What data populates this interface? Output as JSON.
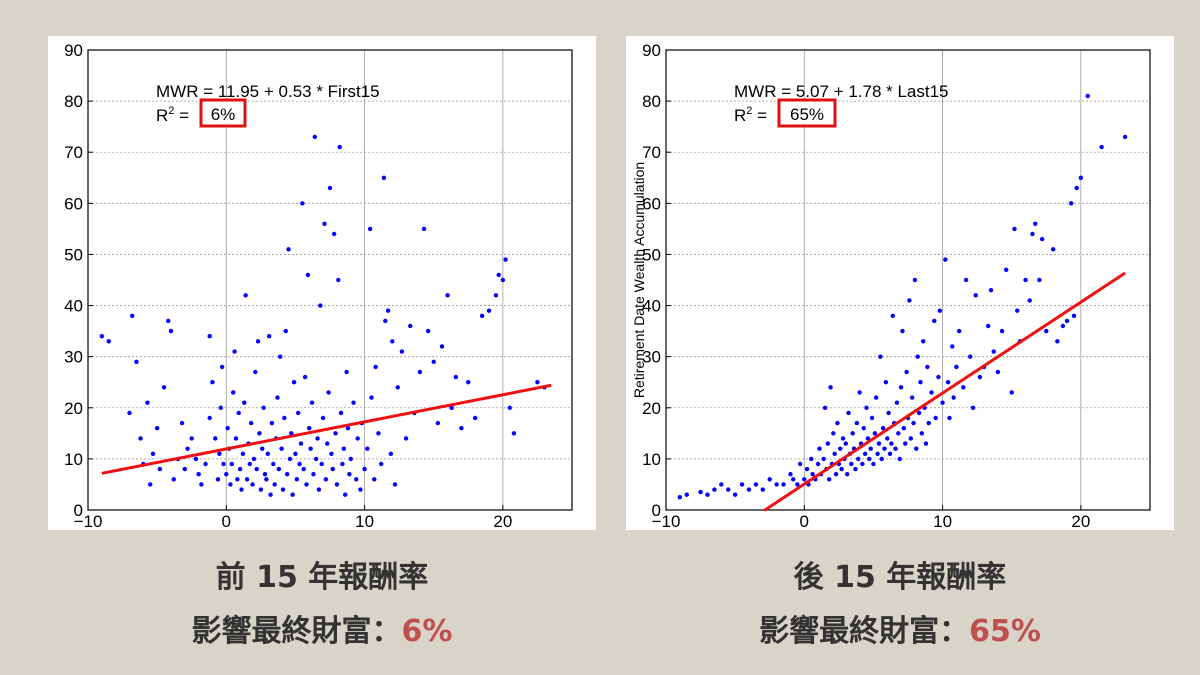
{
  "panels": [
    {
      "id": "left",
      "equation": "MWR = 11.95 + 0.53 * First15",
      "r2_prefix": "R",
      "r2_sup": "2",
      "r2_eq": " = ",
      "r2_value": "6%",
      "caption_line1": "前 15 年報酬率",
      "caption_line2_prefix": "影響最終財富：",
      "caption_line2_value": "6%"
    },
    {
      "id": "right",
      "equation": "MWR = 5.07 + 1.78 * Last15",
      "r2_prefix": "R",
      "r2_sup": "2",
      "r2_eq": " = ",
      "r2_value": "65%",
      "caption_line1": "後 15 年報酬率",
      "caption_line2_prefix": "影響最終財富：",
      "caption_line2_value": "65%"
    }
  ],
  "colors": {
    "background": "#d9d4ca",
    "points": "#0000ff",
    "fit_line": "#ee1111",
    "highlight_box": "#dd1111",
    "accent_text": "#c0504d"
  },
  "chart_data": [
    {
      "type": "scatter",
      "xlabel": "",
      "ylabel": "",
      "xlim": [
        -10,
        25
      ],
      "ylim": [
        0,
        90
      ],
      "xticks": [
        -10,
        0,
        10,
        20
      ],
      "yticks": [
        0,
        10,
        20,
        30,
        40,
        50,
        60,
        70,
        80,
        90
      ],
      "grid": true,
      "fit": {
        "intercept": 11.95,
        "slope": 0.53,
        "x_range": [
          -9,
          23.5
        ]
      },
      "points": [
        [
          -9,
          34
        ],
        [
          -8.5,
          33
        ],
        [
          -7,
          19
        ],
        [
          -6.8,
          38
        ],
        [
          -6.5,
          29
        ],
        [
          -6.2,
          14
        ],
        [
          -6,
          9
        ],
        [
          -5.7,
          21
        ],
        [
          -5.5,
          5
        ],
        [
          -5.3,
          11
        ],
        [
          -5,
          16
        ],
        [
          -4.8,
          8
        ],
        [
          -4.5,
          24
        ],
        [
          -4.2,
          37
        ],
        [
          -4,
          35
        ],
        [
          -3.8,
          6
        ],
        [
          -3.5,
          10
        ],
        [
          -3.2,
          17
        ],
        [
          -3,
          8
        ],
        [
          -2.8,
          12
        ],
        [
          -2.5,
          14
        ],
        [
          -2.2,
          10
        ],
        [
          -2,
          7
        ],
        [
          -1.8,
          5
        ],
        [
          -1.5,
          9
        ],
        [
          -1.2,
          34
        ],
        [
          -1.2,
          18
        ],
        [
          -1,
          25
        ],
        [
          -0.8,
          14
        ],
        [
          -0.6,
          6
        ],
        [
          -0.5,
          11
        ],
        [
          -0.4,
          20
        ],
        [
          -0.3,
          28
        ],
        [
          -0.2,
          9
        ],
        [
          0,
          7
        ],
        [
          0.1,
          16
        ],
        [
          0.2,
          12
        ],
        [
          0.3,
          5
        ],
        [
          0.4,
          9
        ],
        [
          0.5,
          23
        ],
        [
          0.6,
          31
        ],
        [
          0.7,
          14
        ],
        [
          0.8,
          6
        ],
        [
          0.9,
          19
        ],
        [
          1,
          8
        ],
        [
          1.1,
          4
        ],
        [
          1.2,
          11
        ],
        [
          1.3,
          21
        ],
        [
          1.4,
          42
        ],
        [
          1.5,
          6
        ],
        [
          1.6,
          13
        ],
        [
          1.7,
          9
        ],
        [
          1.8,
          17
        ],
        [
          1.9,
          5
        ],
        [
          2,
          10
        ],
        [
          2.1,
          27
        ],
        [
          2.2,
          8
        ],
        [
          2.3,
          33
        ],
        [
          2.4,
          15
        ],
        [
          2.5,
          4
        ],
        [
          2.6,
          12
        ],
        [
          2.7,
          20
        ],
        [
          2.8,
          7
        ],
        [
          2.9,
          6
        ],
        [
          3,
          11
        ],
        [
          3.1,
          34
        ],
        [
          3.2,
          3
        ],
        [
          3.3,
          17
        ],
        [
          3.4,
          9
        ],
        [
          3.5,
          5
        ],
        [
          3.6,
          14
        ],
        [
          3.7,
          22
        ],
        [
          3.8,
          8
        ],
        [
          3.9,
          30
        ],
        [
          4,
          12
        ],
        [
          4.1,
          4
        ],
        [
          4.2,
          18
        ],
        [
          4.3,
          35
        ],
        [
          4.4,
          7
        ],
        [
          4.5,
          51
        ],
        [
          4.6,
          10
        ],
        [
          4.7,
          15
        ],
        [
          4.8,
          3
        ],
        [
          4.9,
          25
        ],
        [
          5,
          11
        ],
        [
          5.1,
          6
        ],
        [
          5.2,
          19
        ],
        [
          5.3,
          9
        ],
        [
          5.4,
          13
        ],
        [
          5.5,
          60
        ],
        [
          5.6,
          8
        ],
        [
          5.7,
          26
        ],
        [
          5.8,
          5
        ],
        [
          5.9,
          46
        ],
        [
          6,
          16
        ],
        [
          6.1,
          12
        ],
        [
          6.2,
          21
        ],
        [
          6.3,
          7
        ],
        [
          6.4,
          73
        ],
        [
          6.5,
          10
        ],
        [
          6.6,
          14
        ],
        [
          6.7,
          4
        ],
        [
          6.8,
          40
        ],
        [
          6.9,
          9
        ],
        [
          7,
          18
        ],
        [
          7.1,
          56
        ],
        [
          7.2,
          6
        ],
        [
          7.3,
          13
        ],
        [
          7.4,
          23
        ],
        [
          7.5,
          63
        ],
        [
          7.6,
          11
        ],
        [
          7.7,
          8
        ],
        [
          7.8,
          54
        ],
        [
          7.9,
          15
        ],
        [
          8,
          5
        ],
        [
          8.1,
          45
        ],
        [
          8.2,
          71
        ],
        [
          8.3,
          19
        ],
        [
          8.4,
          9
        ],
        [
          8.5,
          12
        ],
        [
          8.6,
          3
        ],
        [
          8.7,
          27
        ],
        [
          8.8,
          16
        ],
        [
          8.9,
          7
        ],
        [
          9,
          10
        ],
        [
          9.2,
          21
        ],
        [
          9.4,
          6
        ],
        [
          9.5,
          14
        ],
        [
          9.7,
          4
        ],
        [
          9.8,
          17
        ],
        [
          10,
          8
        ],
        [
          10.2,
          12
        ],
        [
          10.4,
          55
        ],
        [
          10.5,
          22
        ],
        [
          10.7,
          6
        ],
        [
          10.8,
          28
        ],
        [
          11,
          15
        ],
        [
          11.2,
          9
        ],
        [
          11.4,
          65
        ],
        [
          11.5,
          37
        ],
        [
          11.7,
          39
        ],
        [
          11.9,
          11
        ],
        [
          12,
          33
        ],
        [
          12.2,
          5
        ],
        [
          12.4,
          24
        ],
        [
          12.7,
          31
        ],
        [
          13,
          14
        ],
        [
          13.3,
          36
        ],
        [
          13.6,
          19
        ],
        [
          14,
          27
        ],
        [
          14.3,
          55
        ],
        [
          14.6,
          35
        ],
        [
          15,
          29
        ],
        [
          15.3,
          17
        ],
        [
          15.6,
          32
        ],
        [
          16,
          42
        ],
        [
          16.3,
          20
        ],
        [
          16.6,
          26
        ],
        [
          17,
          16
        ],
        [
          17.5,
          25
        ],
        [
          18,
          18
        ],
        [
          18.5,
          38
        ],
        [
          19,
          39
        ],
        [
          19.5,
          42
        ],
        [
          19.7,
          46
        ],
        [
          20,
          45
        ],
        [
          20.2,
          49
        ],
        [
          20.5,
          20
        ],
        [
          20.8,
          15
        ],
        [
          22.5,
          25
        ],
        [
          23,
          24
        ]
      ]
    },
    {
      "type": "scatter",
      "xlabel": "",
      "ylabel": "Retirement Date Wealth Accumulation",
      "xlim": [
        -10,
        25
      ],
      "ylim": [
        0,
        90
      ],
      "xticks": [
        -10,
        0,
        10,
        20
      ],
      "yticks": [
        0,
        10,
        20,
        30,
        40,
        50,
        60,
        70,
        80,
        90
      ],
      "grid": true,
      "fit": {
        "intercept": 5.07,
        "slope": 1.78,
        "x_range": [
          -2.9,
          23.2
        ]
      },
      "points": [
        [
          -9,
          2.5
        ],
        [
          -8.5,
          3
        ],
        [
          -7.5,
          3.5
        ],
        [
          -7,
          3
        ],
        [
          -6.5,
          4
        ],
        [
          -6,
          5
        ],
        [
          -5.5,
          4
        ],
        [
          -5,
          3
        ],
        [
          -4.5,
          5
        ],
        [
          -4,
          4
        ],
        [
          -3.5,
          5
        ],
        [
          -3,
          4
        ],
        [
          -2.5,
          6
        ],
        [
          -2,
          5
        ],
        [
          -1.5,
          5
        ],
        [
          -1,
          7
        ],
        [
          -0.8,
          6
        ],
        [
          -0.5,
          5
        ],
        [
          -0.3,
          9
        ],
        [
          0,
          6
        ],
        [
          0.2,
          8
        ],
        [
          0.3,
          5
        ],
        [
          0.5,
          10
        ],
        [
          0.6,
          7
        ],
        [
          0.8,
          6
        ],
        [
          1,
          9
        ],
        [
          1.1,
          12
        ],
        [
          1.2,
          7
        ],
        [
          1.4,
          10
        ],
        [
          1.5,
          20
        ],
        [
          1.6,
          8
        ],
        [
          1.7,
          13
        ],
        [
          1.8,
          6
        ],
        [
          1.9,
          24
        ],
        [
          2,
          9
        ],
        [
          2.1,
          15
        ],
        [
          2.2,
          11
        ],
        [
          2.3,
          7
        ],
        [
          2.4,
          17
        ],
        [
          2.5,
          9
        ],
        [
          2.6,
          12
        ],
        [
          2.7,
          8
        ],
        [
          2.8,
          14
        ],
        [
          2.9,
          10
        ],
        [
          3,
          13
        ],
        [
          3.1,
          7
        ],
        [
          3.2,
          19
        ],
        [
          3.3,
          11
        ],
        [
          3.4,
          9
        ],
        [
          3.5,
          15
        ],
        [
          3.6,
          12
        ],
        [
          3.7,
          8
        ],
        [
          3.8,
          17
        ],
        [
          3.9,
          10
        ],
        [
          4,
          23
        ],
        [
          4.1,
          13
        ],
        [
          4.2,
          9
        ],
        [
          4.3,
          16
        ],
        [
          4.4,
          11
        ],
        [
          4.5,
          20
        ],
        [
          4.6,
          14
        ],
        [
          4.7,
          10
        ],
        [
          4.8,
          12
        ],
        [
          4.9,
          18
        ],
        [
          5,
          9
        ],
        [
          5.1,
          15
        ],
        [
          5.2,
          22
        ],
        [
          5.3,
          11
        ],
        [
          5.4,
          13
        ],
        [
          5.5,
          30
        ],
        [
          5.6,
          10
        ],
        [
          5.7,
          16
        ],
        [
          5.8,
          12
        ],
        [
          5.9,
          25
        ],
        [
          6,
          14
        ],
        [
          6.1,
          19
        ],
        [
          6.2,
          11
        ],
        [
          6.3,
          13
        ],
        [
          6.4,
          38
        ],
        [
          6.5,
          17
        ],
        [
          6.6,
          12
        ],
        [
          6.7,
          21
        ],
        [
          6.8,
          15
        ],
        [
          6.9,
          10
        ],
        [
          7,
          24
        ],
        [
          7.1,
          35
        ],
        [
          7.2,
          16
        ],
        [
          7.3,
          13
        ],
        [
          7.4,
          27
        ],
        [
          7.5,
          18
        ],
        [
          7.6,
          41
        ],
        [
          7.7,
          14
        ],
        [
          7.8,
          22
        ],
        [
          7.9,
          17
        ],
        [
          8,
          45
        ],
        [
          8.1,
          12
        ],
        [
          8.2,
          30
        ],
        [
          8.3,
          19
        ],
        [
          8.4,
          25
        ],
        [
          8.5,
          15
        ],
        [
          8.6,
          33
        ],
        [
          8.7,
          20
        ],
        [
          8.8,
          13
        ],
        [
          8.9,
          28
        ],
        [
          9,
          17
        ],
        [
          9.2,
          23
        ],
        [
          9.4,
          37
        ],
        [
          9.5,
          18
        ],
        [
          9.7,
          26
        ],
        [
          9.8,
          39
        ],
        [
          10,
          21
        ],
        [
          10.2,
          49
        ],
        [
          10.4,
          25
        ],
        [
          10.5,
          18
        ],
        [
          10.7,
          32
        ],
        [
          10.8,
          22
        ],
        [
          11,
          28
        ],
        [
          11.2,
          35
        ],
        [
          11.5,
          24
        ],
        [
          11.7,
          45
        ],
        [
          12,
          30
        ],
        [
          12.2,
          20
        ],
        [
          12.4,
          42
        ],
        [
          12.7,
          26
        ],
        [
          13,
          28
        ],
        [
          13.3,
          36
        ],
        [
          13.5,
          43
        ],
        [
          13.7,
          31
        ],
        [
          14,
          27
        ],
        [
          14.3,
          35
        ],
        [
          14.6,
          47
        ],
        [
          15,
          23
        ],
        [
          15.2,
          55
        ],
        [
          15.4,
          39
        ],
        [
          15.6,
          33
        ],
        [
          16,
          45
        ],
        [
          16.3,
          41
        ],
        [
          16.5,
          54
        ],
        [
          16.7,
          56
        ],
        [
          17,
          45
        ],
        [
          17.2,
          53
        ],
        [
          17.5,
          35
        ],
        [
          18,
          51
        ],
        [
          18.3,
          33
        ],
        [
          18.7,
          36
        ],
        [
          19,
          37
        ],
        [
          19.3,
          60
        ],
        [
          19.5,
          38
        ],
        [
          19.7,
          63
        ],
        [
          20,
          65
        ],
        [
          20.5,
          81
        ],
        [
          21.5,
          71
        ],
        [
          23.2,
          73
        ]
      ]
    }
  ]
}
